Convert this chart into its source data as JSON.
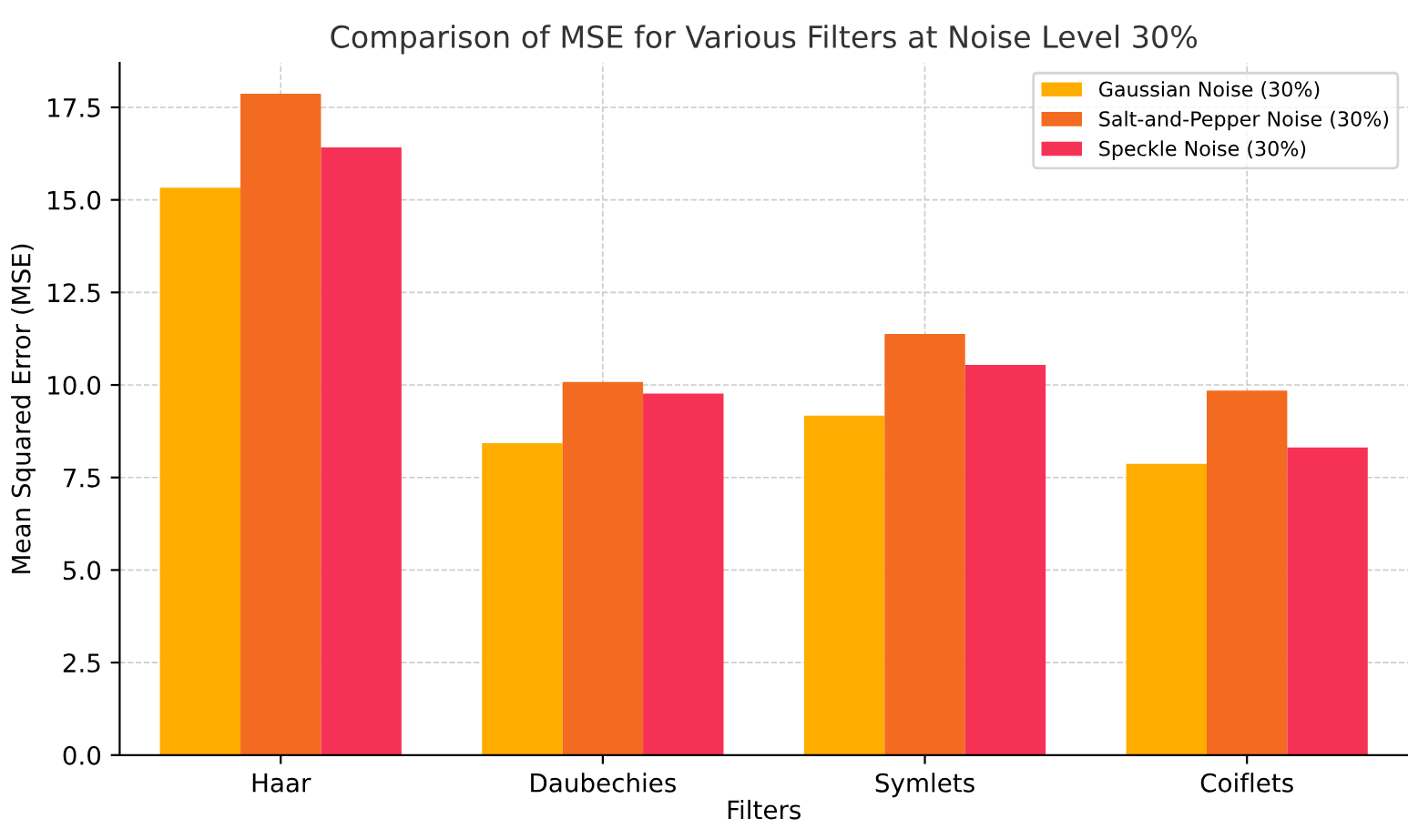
{
  "chart_data": {
    "type": "bar",
    "title": "Comparison of MSE for Various Filters at Noise Level 30%",
    "xlabel": "Filters",
    "ylabel": "Mean Squared Error (MSE)",
    "categories": [
      "Haar",
      "Daubechies",
      "Symlets",
      "Coiflets"
    ],
    "series": [
      {
        "name": "Gaussian Noise (30%)",
        "color": "#ffad00",
        "values": [
          15.33,
          8.43,
          9.17,
          7.87
        ]
      },
      {
        "name": "Salt-and-Pepper Noise (30%)",
        "color": "#f26b21",
        "values": [
          17.87,
          10.08,
          11.38,
          9.85
        ]
      },
      {
        "name": "Speckle Noise (30%)",
        "color": "#f53255",
        "values": [
          16.42,
          9.77,
          10.54,
          8.31
        ]
      }
    ],
    "ylim": [
      0,
      18.7
    ],
    "yticks": [
      {
        "value": 0,
        "label": "0.0"
      },
      {
        "value": 2.5,
        "label": "2.5"
      },
      {
        "value": 5,
        "label": "5.0"
      },
      {
        "value": 7.5,
        "label": "7.5"
      },
      {
        "value": 10,
        "label": "10.0"
      },
      {
        "value": 12.5,
        "label": "12.5"
      },
      {
        "value": 15,
        "label": "15.0"
      },
      {
        "value": 17.5,
        "label": "17.5"
      }
    ],
    "grid": true,
    "legend": "top right"
  }
}
